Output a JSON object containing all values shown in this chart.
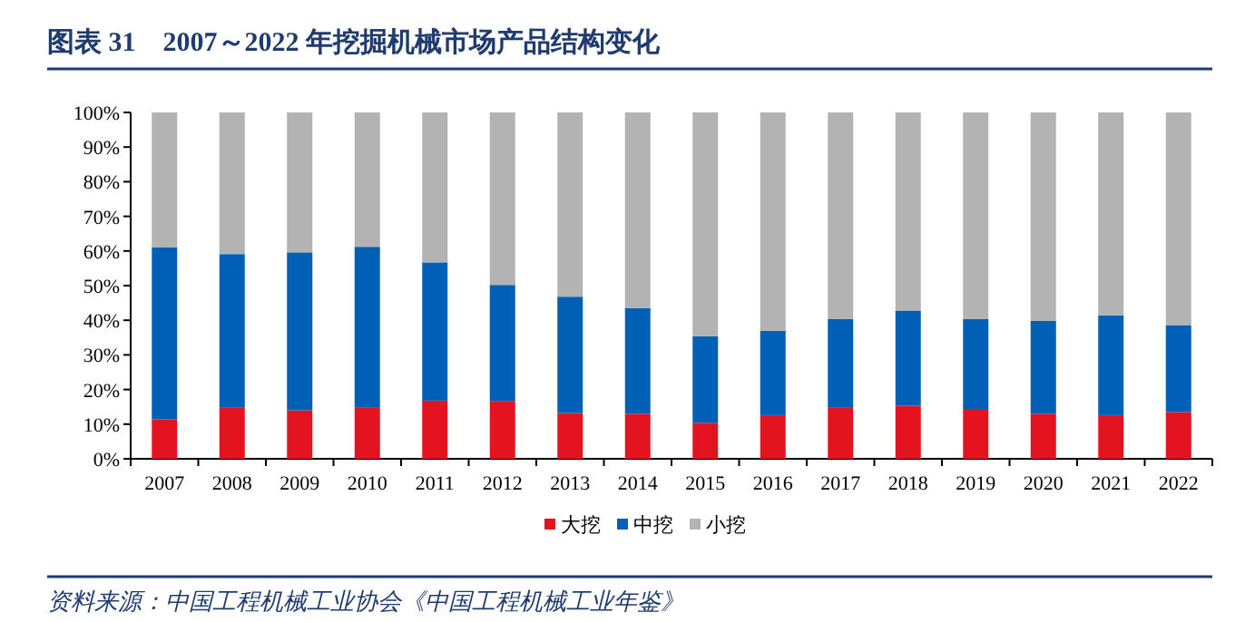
{
  "chart_data": {
    "type": "bar",
    "title": "图表 31　2007～2022 年挖掘机械市场产品结构变化",
    "categories": [
      "2007",
      "2008",
      "2009",
      "2010",
      "2011",
      "2012",
      "2013",
      "2014",
      "2015",
      "2016",
      "2017",
      "2018",
      "2019",
      "2020",
      "2021",
      "2022"
    ],
    "stacked": true,
    "series": [
      {
        "name": "大挖",
        "color": "#e3141f",
        "values": [
          11.4,
          14.7,
          14.0,
          14.7,
          16.8,
          16.7,
          13.2,
          13.0,
          10.4,
          12.6,
          14.7,
          15.3,
          14.4,
          13.0,
          12.6,
          13.5
        ]
      },
      {
        "name": "中挖",
        "color": "#0060b6",
        "values": [
          49.7,
          44.4,
          45.6,
          46.5,
          39.9,
          33.5,
          33.6,
          30.5,
          25.0,
          24.4,
          25.7,
          27.5,
          26.0,
          26.8,
          28.8,
          25.1
        ]
      },
      {
        "name": "小挖",
        "color": "#b3b3b3",
        "values": [
          38.9,
          40.9,
          40.4,
          38.8,
          43.3,
          49.8,
          53.2,
          56.5,
          64.6,
          63.0,
          59.6,
          57.2,
          59.6,
          60.2,
          58.6,
          61.4
        ]
      }
    ],
    "ylim": [
      0,
      100
    ],
    "yticks": [
      {
        "value": 0,
        "label": "0%"
      },
      {
        "value": 10,
        "label": "10%"
      },
      {
        "value": 20,
        "label": "20%"
      },
      {
        "value": 30,
        "label": "30%"
      },
      {
        "value": 40,
        "label": "40%"
      },
      {
        "value": 50,
        "label": "50%"
      },
      {
        "value": 60,
        "label": "60%"
      },
      {
        "value": 70,
        "label": "70%"
      },
      {
        "value": 80,
        "label": "80%"
      },
      {
        "value": 90,
        "label": "90%"
      },
      {
        "value": 100,
        "label": "100%"
      }
    ],
    "legend": "bottom",
    "annotations": [
      "资料来源：中国工程机械工业协会《中国工程机械工业年鉴》"
    ]
  }
}
